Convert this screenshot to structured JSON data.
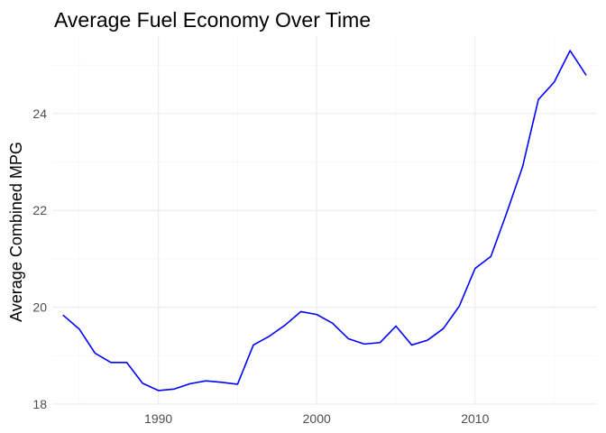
{
  "chart_data": {
    "type": "line",
    "title": "Average Fuel Economy Over Time",
    "xlabel": "",
    "ylabel": "Average Combined MPG",
    "xlim": [
      1983.3,
      2017.7
    ],
    "ylim": [
      17.98,
      25.6
    ],
    "x_ticks": [
      1990,
      2000,
      2010
    ],
    "x_tick_labels": [
      "1990",
      "2000",
      "2010"
    ],
    "y_ticks": [
      18,
      20,
      22,
      24
    ],
    "y_tick_labels": [
      "18",
      "20",
      "22",
      "24"
    ],
    "grid": true,
    "legend": "none",
    "line_color": "#0000ff",
    "x": [
      1984,
      1985,
      1986,
      1987,
      1988,
      1989,
      1990,
      1991,
      1992,
      1993,
      1994,
      1995,
      1996,
      1997,
      1998,
      1999,
      2000,
      2001,
      2002,
      2003,
      2004,
      2005,
      2006,
      2007,
      2008,
      2009,
      2010,
      2011,
      2012,
      2013,
      2014,
      2015,
      2016,
      2017
    ],
    "y": [
      19.83,
      19.55,
      19.05,
      18.86,
      18.86,
      18.43,
      18.28,
      18.31,
      18.42,
      18.48,
      18.45,
      18.41,
      19.22,
      19.4,
      19.63,
      19.91,
      19.85,
      19.67,
      19.35,
      19.24,
      19.27,
      19.61,
      19.22,
      19.32,
      19.56,
      20.02,
      20.8,
      21.05,
      21.95,
      22.9,
      24.29,
      24.65,
      25.3,
      24.8
    ]
  }
}
